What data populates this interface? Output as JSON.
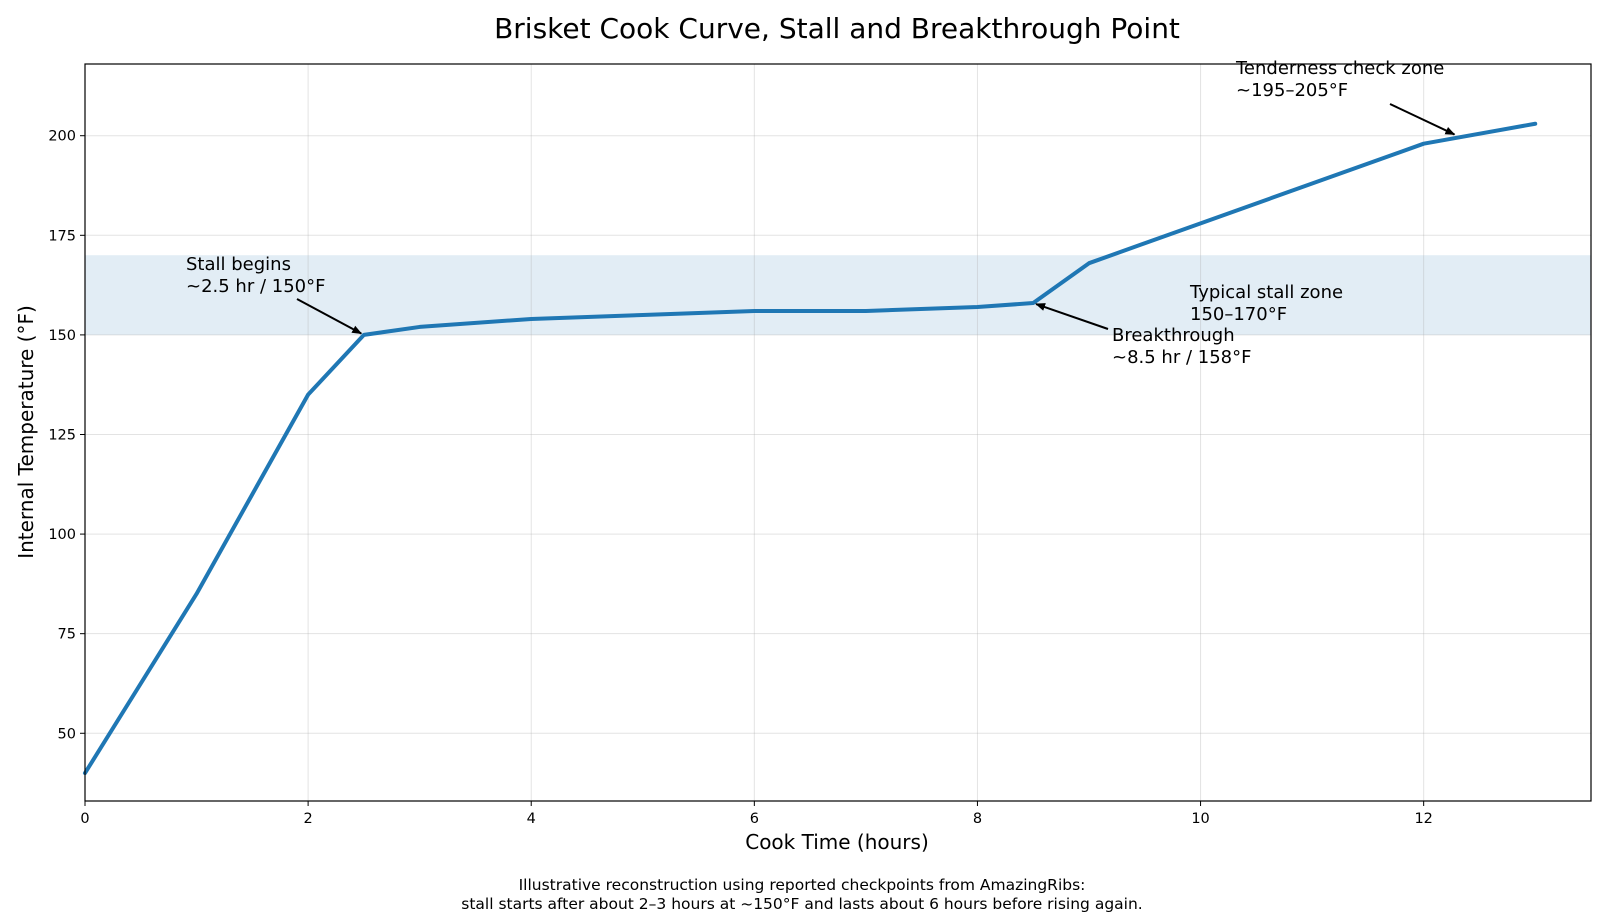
{
  "chart_data": {
    "type": "line",
    "title": "Brisket Cook Curve, Stall and Breakthrough Point",
    "xlabel": "Cook Time (hours)",
    "ylabel": "Internal Temperature (°F)",
    "xlim": [
      0,
      13.5
    ],
    "ylim": [
      33,
      218
    ],
    "xticks": [
      0,
      2,
      4,
      6,
      8,
      10,
      12
    ],
    "yticks": [
      50,
      75,
      100,
      125,
      150,
      175,
      200
    ],
    "grid": true,
    "line_color": "#1f77b4",
    "band_color": "#1f77b4",
    "series": [
      {
        "x": [
          0,
          1,
          2,
          2.5,
          3,
          4,
          5,
          6,
          7,
          8,
          8.5,
          9,
          10,
          11,
          12,
          13
        ],
        "y": [
          40,
          85,
          135,
          150,
          152,
          154,
          155,
          156,
          156,
          157,
          158,
          168,
          178,
          188,
          198,
          203
        ]
      }
    ],
    "bands": [
      {
        "y0": 150,
        "y1": 170,
        "label_lines": [
          "Typical stall zone",
          "150–170°F"
        ]
      }
    ],
    "annotations": [
      {
        "name": "stall-begins",
        "lines": [
          "Stall begins",
          "~2.5 hr / 150°F"
        ],
        "point": [
          2.5,
          150
        ]
      },
      {
        "name": "breakthrough",
        "lines": [
          "Breakthrough",
          "~8.5 hr / 158°F"
        ],
        "point": [
          8.5,
          158
        ]
      },
      {
        "name": "tenderness-check",
        "lines": [
          "Tenderness check zone",
          "~195–205°F"
        ],
        "point": [
          12.3,
          200
        ]
      }
    ]
  },
  "footnote": {
    "line1": "Illustrative reconstruction using reported checkpoints from AmazingRibs:",
    "line2": "stall starts after about 2–3 hours at ~150°F and lasts about 6 hours before rising again."
  }
}
